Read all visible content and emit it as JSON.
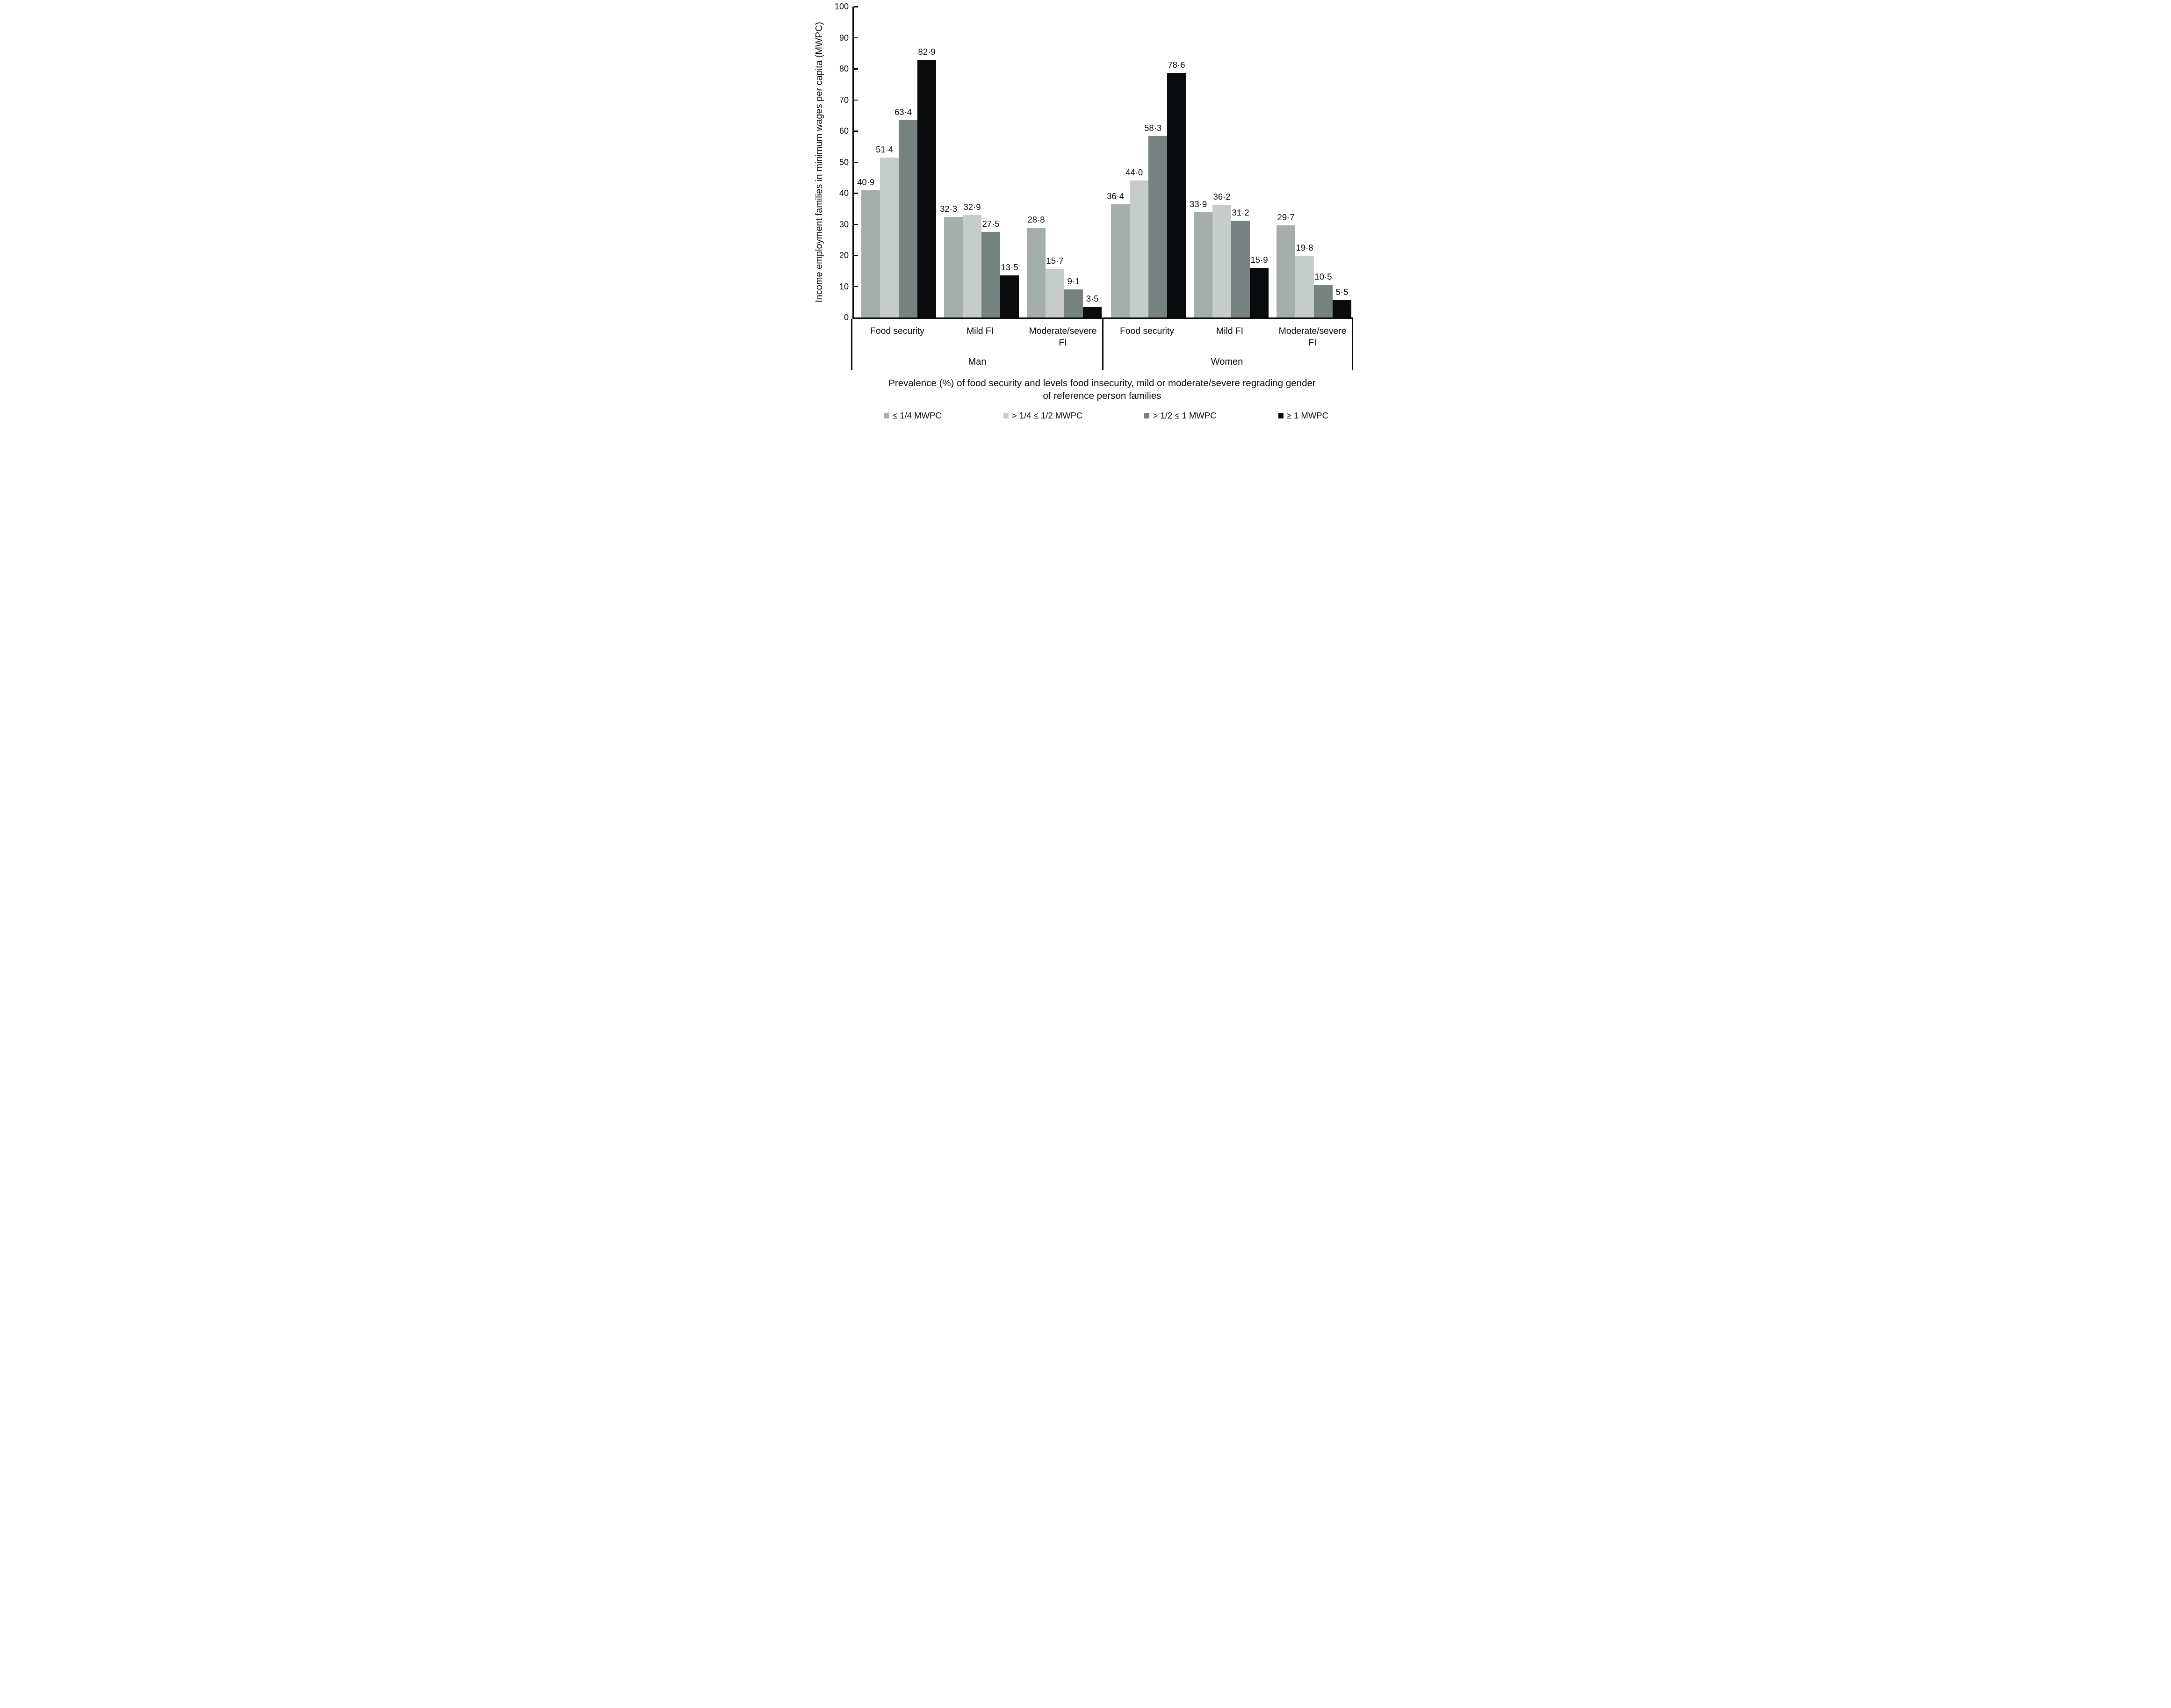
{
  "chart_data": {
    "type": "bar",
    "title": "",
    "ylabel": "Income employment families in minimum wages per capita (MWPC)",
    "ylim": [
      0,
      100
    ],
    "yticks": [
      0,
      10,
      20,
      30,
      40,
      50,
      60,
      70,
      80,
      90,
      100
    ],
    "grid": "off",
    "legend_position": "bottom",
    "caption_lines": [
      "Prevalence (%) of food security and levels food insecurity, mild or moderate/severe regrading gender",
      "of reference person families"
    ],
    "series": [
      {
        "name": "≤ 1/4 MWPC",
        "color": "#a6aeac"
      },
      {
        "name": "> 1/4 ≤ 1/2 MWPC",
        "color": "#c6ccc9"
      },
      {
        "name": "> 1/2 ≤ 1 MWPC",
        "color": "#75827f"
      },
      {
        "name": "≥ 1 MWPC",
        "color": "#0a0b0d"
      }
    ],
    "panels": [
      {
        "label": "Man",
        "categories": [
          "Food security",
          "Mild FI",
          "Moderate/severe FI"
        ],
        "values": [
          [
            40.9,
            51.4,
            63.4,
            82.9
          ],
          [
            32.3,
            32.9,
            27.5,
            13.5
          ],
          [
            28.8,
            15.7,
            9.1,
            3.5
          ]
        ],
        "value_labels": [
          [
            "40·9",
            "51·4",
            "63·4",
            "82·9"
          ],
          [
            "32·3",
            "32·9",
            "27·5",
            "13·5"
          ],
          [
            "28·8",
            "15·7",
            "9·1",
            "3·5"
          ]
        ]
      },
      {
        "label": "Women",
        "categories": [
          "Food security",
          "Mild FI",
          "Moderate/severe FI"
        ],
        "values": [
          [
            36.4,
            44.0,
            58.3,
            78.6
          ],
          [
            33.9,
            36.2,
            31.2,
            15.9
          ],
          [
            29.7,
            19.8,
            10.5,
            5.5
          ]
        ],
        "value_labels": [
          [
            "36·4",
            "44·0",
            "58·3",
            "78·6"
          ],
          [
            "33·9",
            "36·2",
            "31·2",
            "15·9"
          ],
          [
            "29·7",
            "19·8",
            "10·5",
            "5·5"
          ]
        ]
      }
    ]
  }
}
